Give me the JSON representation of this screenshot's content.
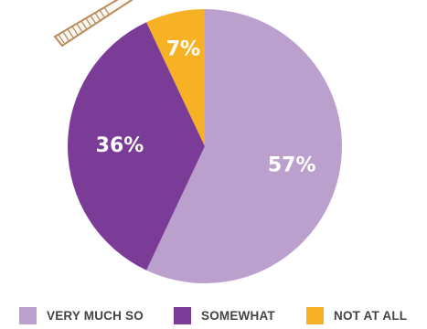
{
  "chart_data": {
    "type": "pie",
    "categories": [
      "VERY MUCH SO",
      "SOMEWHAT",
      "NOT AT ALL"
    ],
    "values": [
      57,
      36,
      7
    ],
    "data_labels": [
      "57%",
      "36%",
      "7%"
    ],
    "title": "",
    "legend_position": "bottom",
    "colors": [
      "#bba0cd",
      "#7a3c96",
      "#f6b124"
    ]
  },
  "decoration": {
    "pencil_color": "#b98a5c"
  }
}
